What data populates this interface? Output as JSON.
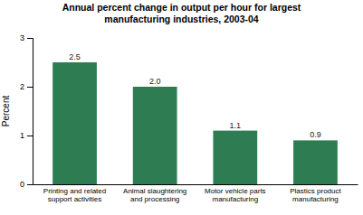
{
  "chart_data": {
    "type": "bar",
    "title": "Annual percent change in output per hour for largest\nmanufacturing industries, 2003-04",
    "categories": [
      "Printing and related\nsupport activities",
      "Animal slaughtering\nand processing",
      "Motor vehicle parts\nmanufacturing",
      "Plastics product\nmanufacturing"
    ],
    "values": [
      2.5,
      2.0,
      1.1,
      0.9
    ],
    "value_labels": [
      "2.5",
      "2.0",
      "1.1",
      "0.9"
    ],
    "color": "#2e7d52",
    "ylabel": "Percent",
    "ylim": [
      0,
      3
    ],
    "yticks": [
      0,
      1,
      2,
      3
    ],
    "grid": false,
    "data_labels": true
  }
}
